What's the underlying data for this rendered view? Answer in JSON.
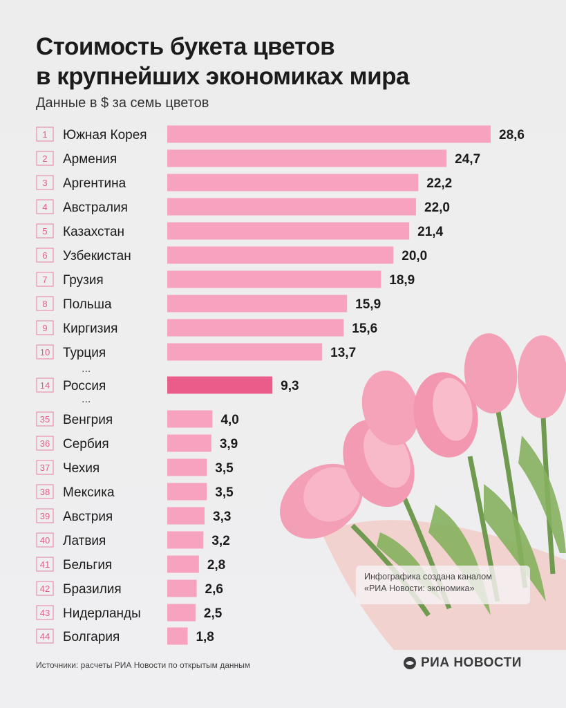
{
  "title": {
    "line1": "Стоимость букета цветов",
    "line2": "в крупнейших экономиках мира"
  },
  "subtitle": "Данные в $ за семь цветов",
  "colors": {
    "bar": "#f7a2be",
    "bar_highlight": "#ea5d8a",
    "rank_border": "#e87fa3"
  },
  "ellipsis": "...",
  "chart_data": {
    "type": "bar",
    "orientation": "horizontal",
    "title": "Стоимость букета цветов в крупнейших экономиках мира",
    "subtitle": "Данные в $ за семь цветов",
    "rows": [
      {
        "rank": "1",
        "country": "Южная Корея",
        "value": 28.6,
        "label": "28,6"
      },
      {
        "rank": "2",
        "country": "Армения",
        "value": 24.7,
        "label": "24,7"
      },
      {
        "rank": "3",
        "country": "Аргентина",
        "value": 22.2,
        "label": "22,2"
      },
      {
        "rank": "4",
        "country": "Австралия",
        "value": 22.0,
        "label": "22,0"
      },
      {
        "rank": "5",
        "country": "Казахстан",
        "value": 21.4,
        "label": "21,4"
      },
      {
        "rank": "6",
        "country": "Узбекистан",
        "value": 20.0,
        "label": "20,0"
      },
      {
        "rank": "7",
        "country": "Грузия",
        "value": 18.9,
        "label": "18,9"
      },
      {
        "rank": "8",
        "country": "Польша",
        "value": 15.9,
        "label": "15,9"
      },
      {
        "rank": "9",
        "country": "Киргизия",
        "value": 15.6,
        "label": "15,6"
      },
      {
        "rank": "10",
        "country": "Турция",
        "value": 13.7,
        "label": "13,7"
      },
      {
        "rank": "14",
        "country": "Россия",
        "value": 9.3,
        "label": "9,3",
        "highlight": true
      },
      {
        "rank": "35",
        "country": "Венгрия",
        "value": 4.0,
        "label": "4,0"
      },
      {
        "rank": "36",
        "country": "Сербия",
        "value": 3.9,
        "label": "3,9"
      },
      {
        "rank": "37",
        "country": "Чехия",
        "value": 3.5,
        "label": "3,5"
      },
      {
        "rank": "38",
        "country": "Мексика",
        "value": 3.5,
        "label": "3,5"
      },
      {
        "rank": "39",
        "country": "Австрия",
        "value": 3.3,
        "label": "3,3"
      },
      {
        "rank": "40",
        "country": "Латвия",
        "value": 3.2,
        "label": "3,2"
      },
      {
        "rank": "41",
        "country": "Бельгия",
        "value": 2.8,
        "label": "2,8"
      },
      {
        "rank": "42",
        "country": "Бразилия",
        "value": 2.6,
        "label": "2,6"
      },
      {
        "rank": "43",
        "country": "Нидерланды",
        "value": 2.5,
        "label": "2,5"
      },
      {
        "rank": "44",
        "country": "Болгария",
        "value": 1.8,
        "label": "1,8"
      }
    ],
    "xlim": [
      0,
      28.6
    ],
    "grid": false,
    "legend": "none"
  },
  "note": {
    "line1": "Инфографика создана каналом",
    "line2": "«РИА Новости: экономика»"
  },
  "source": "Источники: расчеты РИА Новости по открытым данным",
  "logo": {
    "text": "РИА НОВОСТИ",
    "icon": "ria-logo-icon"
  }
}
